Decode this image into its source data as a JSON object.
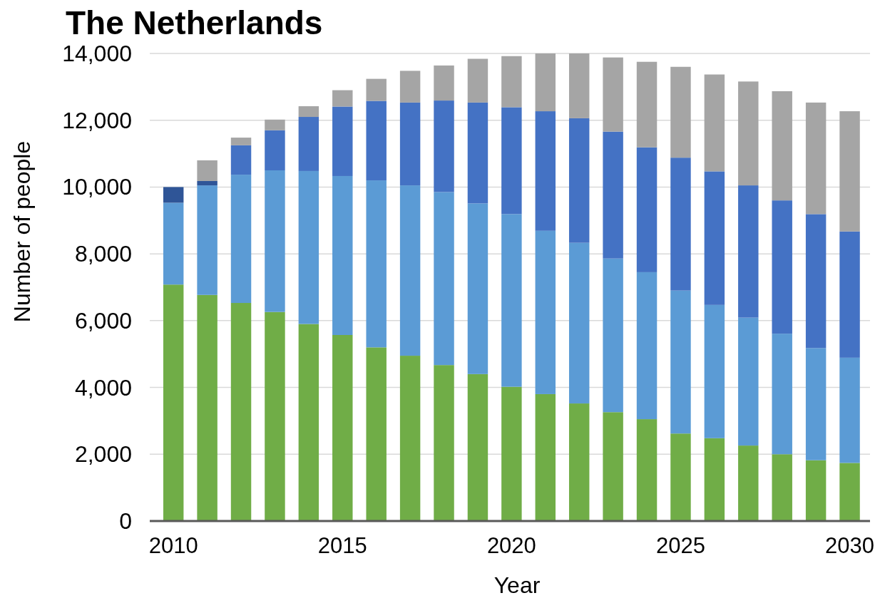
{
  "chart_data": {
    "type": "bar",
    "title": "The Netherlands",
    "xlabel": "Year",
    "ylabel": "Number of people",
    "stacked": true,
    "x": [
      2010,
      2011,
      2012,
      2013,
      2014,
      2015,
      2016,
      2017,
      2018,
      2019,
      2020,
      2021,
      2022,
      2023,
      2024,
      2025,
      2026,
      2027,
      2028,
      2029,
      2030
    ],
    "series": [
      {
        "color": "#70ad47",
        "values": [
          7080,
          6770,
          6530,
          6260,
          5900,
          5570,
          5200,
          4950,
          4670,
          4400,
          4020,
          3800,
          3520,
          3260,
          3050,
          2620,
          2480,
          2260,
          2000,
          1820,
          1740
        ]
      },
      {
        "color": "#5b9bd5",
        "values": [
          2450,
          3280,
          3840,
          4240,
          4580,
          4760,
          5000,
          5100,
          5180,
          5110,
          5170,
          4890,
          4810,
          4600,
          4400,
          4280,
          3990,
          3830,
          3610,
          3360,
          3150
        ]
      },
      {
        "color": "#2f5597",
        "values": [
          470,
          130,
          null,
          null,
          null,
          null,
          null,
          null,
          null,
          null,
          null,
          null,
          null,
          null,
          null,
          null,
          null,
          null,
          null,
          null,
          null
        ]
      },
      {
        "color": "#4472c4",
        "values": [
          null,
          null,
          880,
          1200,
          1620,
          2080,
          2380,
          2480,
          2740,
          3020,
          3200,
          3580,
          3730,
          3800,
          3740,
          3980,
          4000,
          3960,
          3990,
          4010,
          3780
        ]
      },
      {
        "color": "#a5a5a5",
        "values": [
          null,
          620,
          230,
          320,
          320,
          490,
          660,
          950,
          1050,
          1310,
          1530,
          1730,
          1940,
          2220,
          2560,
          2720,
          2900,
          3110,
          3270,
          3340,
          3600
        ]
      }
    ],
    "xlim": [
      2009.3,
      2030.6
    ],
    "xticks": [
      2010,
      2015,
      2020,
      2025,
      2030
    ],
    "ylim": [
      0,
      14000
    ],
    "yticks": [
      0,
      {
        "value": 2000,
        "label": "2,000"
      },
      {
        "value": 4000,
        "label": "4,000"
      },
      {
        "value": 6000,
        "label": "6,000"
      },
      {
        "value": 8000,
        "label": "8,000"
      },
      {
        "value": 10000,
        "label": "10,000"
      },
      {
        "value": 12000,
        "label": "12,000"
      },
      {
        "value": 14000,
        "label": "14,000"
      }
    ],
    "grid": "y"
  }
}
